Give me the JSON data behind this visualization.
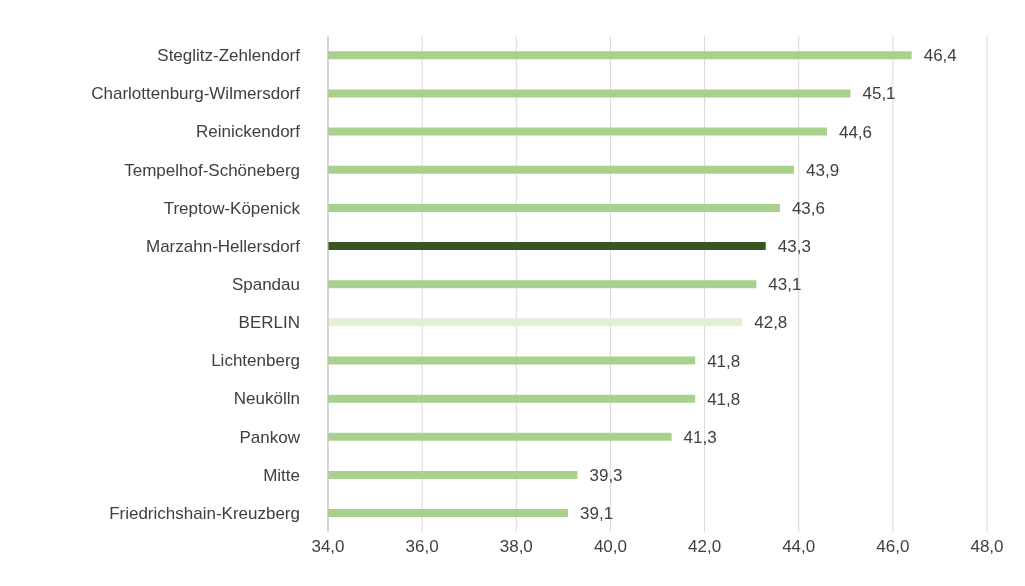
{
  "chart_data": {
    "type": "bar",
    "orientation": "horizontal",
    "categories": [
      "Steglitz-Zehlendorf",
      "Charlottenburg-Wilmersdorf",
      "Reinickendorf",
      "Tempelhof-Schöneberg",
      "Treptow-Köpenick",
      "Marzahn-Hellersdorf",
      "Spandau",
      "BERLIN",
      "Lichtenberg",
      "Neukölln",
      "Pankow",
      "Mitte",
      "Friedrichshain-Kreuzberg"
    ],
    "values": [
      46.4,
      45.1,
      44.6,
      43.9,
      43.6,
      43.3,
      43.1,
      42.8,
      41.8,
      41.8,
      41.3,
      39.3,
      39.1
    ],
    "value_labels": [
      "46,4",
      "45,1",
      "44,6",
      "43,9",
      "43,6",
      "43,3",
      "43,1",
      "42,8",
      "41,8",
      "41,8",
      "41,3",
      "39,3",
      "39,1"
    ],
    "colors": [
      "#a9d18e",
      "#a9d18e",
      "#a9d18e",
      "#a9d18e",
      "#a9d18e",
      "#375623",
      "#a9d18e",
      "#e2efd9",
      "#a9d18e",
      "#a9d18e",
      "#a9d18e",
      "#a9d18e",
      "#a9d18e"
    ],
    "xlim": [
      34,
      48
    ],
    "xticks": [
      {
        "value": 34,
        "label": "34,0"
      },
      {
        "value": 36,
        "label": "36,0"
      },
      {
        "value": 38,
        "label": "38,0"
      },
      {
        "value": 40,
        "label": "40,0"
      },
      {
        "value": 42,
        "label": "42,0"
      },
      {
        "value": 44,
        "label": "44,0"
      },
      {
        "value": 46,
        "label": "46,0"
      },
      {
        "value": 48,
        "label": "48,0"
      }
    ],
    "grid": "x",
    "legend": false
  }
}
